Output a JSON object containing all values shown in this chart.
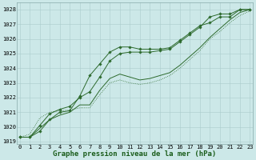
{
  "xlabel": "Graphe pression niveau de la mer (hPa)",
  "x": [
    0,
    1,
    2,
    3,
    4,
    5,
    6,
    7,
    8,
    9,
    10,
    11,
    12,
    13,
    14,
    15,
    16,
    17,
    18,
    19,
    20,
    21,
    22,
    23
  ],
  "line1": [
    1019.3,
    1019.3,
    1019.7,
    1020.5,
    1021.0,
    1021.1,
    1022.1,
    1023.5,
    1024.3,
    1025.1,
    1025.45,
    1025.45,
    1025.3,
    1025.3,
    1025.3,
    1025.4,
    1025.9,
    1026.4,
    1026.9,
    1027.1,
    1027.5,
    1027.5,
    1028.0,
    1028.0
  ],
  "line2": [
    1019.3,
    1019.5,
    1020.6,
    1021.0,
    1021.1,
    1021.15,
    1021.3,
    1021.3,
    1022.2,
    1023.0,
    1023.2,
    1023.0,
    1022.9,
    1023.0,
    1023.2,
    1023.5,
    1024.0,
    1024.6,
    1025.2,
    1026.0,
    1026.5,
    1027.1,
    1027.6,
    1027.9
  ],
  "line3": [
    1019.3,
    1019.3,
    1019.9,
    1020.5,
    1020.8,
    1021.0,
    1021.5,
    1021.5,
    1022.5,
    1023.3,
    1023.6,
    1023.4,
    1023.2,
    1023.3,
    1023.5,
    1023.7,
    1024.2,
    1024.8,
    1025.4,
    1026.1,
    1026.7,
    1027.3,
    1027.8,
    1028.0
  ],
  "line4": [
    1019.3,
    1019.3,
    1020.1,
    1020.9,
    1021.2,
    1021.4,
    1022.0,
    1022.4,
    1023.4,
    1024.5,
    1025.0,
    1025.1,
    1025.1,
    1025.1,
    1025.2,
    1025.3,
    1025.8,
    1026.3,
    1026.8,
    1027.5,
    1027.7,
    1027.7,
    1028.0,
    1028.0
  ],
  "ylim_min": 1019,
  "ylim_max": 1028.5,
  "yticks": [
    1019,
    1020,
    1021,
    1022,
    1023,
    1024,
    1025,
    1026,
    1027,
    1028
  ],
  "xticks": [
    0,
    1,
    2,
    3,
    4,
    5,
    6,
    7,
    8,
    9,
    10,
    11,
    12,
    13,
    14,
    15,
    16,
    17,
    18,
    19,
    20,
    21,
    22,
    23
  ],
  "line_color": "#2d6a2d",
  "bg_color": "#cce8e8",
  "grid_color": "#aacccc",
  "label_color": "#1a5c1a",
  "tick_fontsize": 5.0,
  "label_fontsize": 6.5
}
